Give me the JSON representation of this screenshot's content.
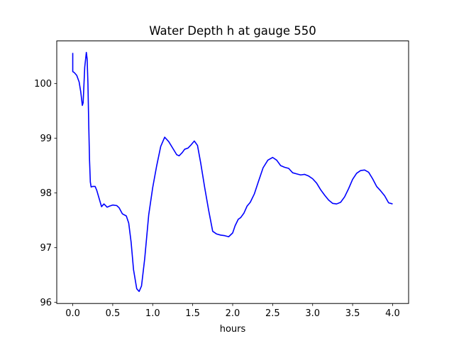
{
  "chart_data": {
    "type": "line",
    "title": "Water Depth h at gauge 550",
    "xlabel": "hours",
    "ylabel": "",
    "xlim": [
      -0.2,
      4.2
    ],
    "ylim": [
      95.98,
      100.78
    ],
    "xticks": [
      0.0,
      0.5,
      1.0,
      1.5,
      2.0,
      2.5,
      3.0,
      3.5,
      4.0
    ],
    "xtick_labels": [
      "0.0",
      "0.5",
      "1.0",
      "1.5",
      "2.0",
      "2.5",
      "3.0",
      "3.5",
      "4.0"
    ],
    "yticks": [
      96,
      97,
      98,
      99,
      100
    ],
    "ytick_labels": [
      "96",
      "97",
      "98",
      "99",
      "100"
    ],
    "grid": false,
    "series": [
      {
        "color": "#0000ff",
        "x": [
          0.0,
          0.0,
          0.02,
          0.05,
          0.08,
          0.1,
          0.12,
          0.13,
          0.15,
          0.17,
          0.18,
          0.19,
          0.2,
          0.21,
          0.22,
          0.23,
          0.25,
          0.28,
          0.3,
          0.33,
          0.36,
          0.39,
          0.41,
          0.43,
          0.46,
          0.5,
          0.55,
          0.58,
          0.62,
          0.67,
          0.7,
          0.73,
          0.76,
          0.8,
          0.83,
          0.86,
          0.9,
          0.95,
          1.0,
          1.05,
          1.1,
          1.15,
          1.2,
          1.25,
          1.3,
          1.33,
          1.37,
          1.4,
          1.44,
          1.48,
          1.52,
          1.56,
          1.6,
          1.65,
          1.7,
          1.75,
          1.8,
          1.85,
          1.9,
          1.95,
          2.0,
          2.03,
          2.07,
          2.1,
          2.14,
          2.18,
          2.22,
          2.27,
          2.32,
          2.38,
          2.44,
          2.5,
          2.55,
          2.6,
          2.65,
          2.7,
          2.75,
          2.8,
          2.85,
          2.9,
          2.95,
          3.0,
          3.05,
          3.1,
          3.15,
          3.2,
          3.25,
          3.3,
          3.35,
          3.4,
          3.45,
          3.5,
          3.55,
          3.6,
          3.65,
          3.7,
          3.75,
          3.8,
          3.85,
          3.9,
          3.95,
          4.0
        ],
        "y": [
          100.56,
          100.22,
          100.2,
          100.15,
          100.03,
          99.85,
          99.6,
          99.65,
          100.3,
          100.57,
          100.45,
          100.0,
          99.25,
          98.6,
          98.2,
          98.11,
          98.12,
          98.12,
          98.05,
          97.9,
          97.75,
          97.8,
          97.77,
          97.74,
          97.76,
          97.78,
          97.77,
          97.73,
          97.62,
          97.58,
          97.45,
          97.1,
          96.6,
          96.25,
          96.2,
          96.3,
          96.8,
          97.6,
          98.1,
          98.5,
          98.85,
          99.02,
          98.94,
          98.82,
          98.7,
          98.68,
          98.74,
          98.8,
          98.82,
          98.88,
          98.95,
          98.87,
          98.55,
          98.1,
          97.68,
          97.3,
          97.25,
          97.23,
          97.22,
          97.2,
          97.27,
          97.4,
          97.52,
          97.55,
          97.63,
          97.76,
          97.83,
          97.98,
          98.2,
          98.46,
          98.6,
          98.65,
          98.6,
          98.5,
          98.47,
          98.45,
          98.37,
          98.35,
          98.33,
          98.34,
          98.31,
          98.26,
          98.18,
          98.06,
          97.96,
          97.87,
          97.81,
          97.8,
          97.83,
          97.93,
          98.08,
          98.25,
          98.36,
          98.41,
          98.42,
          98.38,
          98.26,
          98.12,
          98.04,
          97.95,
          97.82,
          97.8
        ]
      }
    ]
  }
}
